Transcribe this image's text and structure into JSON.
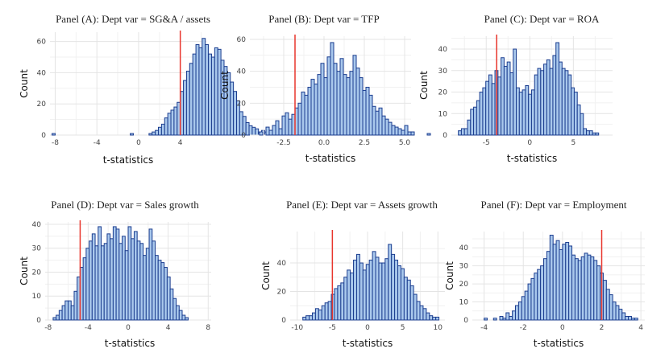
{
  "chart_data": [
    {
      "type": "bar",
      "title": "Panel (A): Dept var = SG&A / assets",
      "xlabel": "t-statistics",
      "ylabel": "Count",
      "xlim": [
        -8.5,
        6.5
      ],
      "ylim": [
        0,
        66
      ],
      "xticks": [
        -8,
        -4,
        0,
        4
      ],
      "yticks": [
        0,
        20,
        40,
        60
      ],
      "bin_width": 0.3,
      "bin_start": -8.3,
      "counts": [
        1,
        0,
        0,
        0,
        0,
        0,
        0,
        0,
        0,
        0,
        0,
        0,
        0,
        0,
        0,
        0,
        0,
        0,
        0,
        0,
        0,
        0,
        0,
        0,
        0,
        1,
        0,
        0,
        0,
        0,
        0,
        1,
        2,
        3,
        5,
        7,
        11,
        14,
        16,
        18,
        21,
        28,
        35,
        41,
        46,
        52,
        58,
        56,
        62,
        58,
        52,
        50,
        56,
        55,
        48,
        44,
        40,
        34,
        28,
        22,
        15,
        12,
        8,
        6,
        5,
        4,
        2,
        3,
        2,
        1,
        1,
        2
      ],
      "vline": 4.0,
      "colors": {
        "bar_fill": "#a9c8ec",
        "bar_edge": "#1b3d8f",
        "vline": "#e8352c",
        "grid": "#e4e4e4"
      }
    },
    {
      "type": "bar",
      "title": "Panel (B): Dept var = TFP",
      "xlabel": "t-statistics",
      "ylabel": "Count",
      "xlim": [
        -4.6,
        5.4
      ],
      "ylim": [
        0,
        62
      ],
      "xticks": [
        -2.5,
        0.0,
        2.5,
        5.0
      ],
      "xtick_labels": [
        "-2.5",
        "0.0",
        "2.5",
        "5.0"
      ],
      "yticks": [
        0,
        20,
        40,
        60
      ],
      "bin_width": 0.2,
      "bin_start": -4.0,
      "counts": [
        2,
        0,
        5,
        3,
        6,
        9,
        4,
        12,
        14,
        10,
        13,
        17,
        20,
        27,
        25,
        30,
        35,
        32,
        38,
        45,
        36,
        49,
        58,
        45,
        40,
        48,
        38,
        36,
        40,
        50,
        42,
        36,
        28,
        30,
        25,
        18,
        15,
        17,
        12,
        10,
        8,
        6,
        5,
        4,
        3,
        6,
        2,
        2,
        0,
        0,
        0,
        0,
        1
      ],
      "vline": -1.8,
      "colors": {
        "bar_fill": "#a9c8ec",
        "bar_edge": "#1b3d8f",
        "vline": "#e8352c",
        "grid": "#e4e4e4"
      }
    },
    {
      "type": "bar",
      "title": "Panel (C): Dept var = ROA",
      "xlabel": "t-statistics",
      "ylabel": "Count",
      "xlim": [
        -9,
        9.5
      ],
      "ylim": [
        0,
        46
      ],
      "xticks": [
        -5,
        0,
        5
      ],
      "yticks": [
        0,
        10,
        20,
        30,
        40
      ],
      "bin_width": 0.35,
      "bin_start": -8.2,
      "counts": [
        2,
        3,
        3,
        7,
        12,
        13,
        16,
        20,
        22,
        25,
        28,
        24,
        30,
        27,
        36,
        32,
        34,
        29,
        40,
        22,
        20,
        21,
        23,
        19,
        21,
        28,
        31,
        30,
        33,
        35,
        31,
        37,
        43,
        34,
        31,
        30,
        28,
        22,
        20,
        14,
        10,
        3,
        2,
        2,
        1,
        1
      ],
      "vline": -3.8,
      "colors": {
        "bar_fill": "#a9c8ec",
        "bar_edge": "#1b3d8f",
        "vline": "#e8352c",
        "grid": "#e4e4e4"
      }
    },
    {
      "type": "bar",
      "title": "Panel (D): Dept var = Sales growth",
      "xlabel": "t-statistics",
      "ylabel": "Count",
      "xlim": [
        -8.3,
        8.3
      ],
      "ylim": [
        0,
        41
      ],
      "xticks": [
        -8,
        -4,
        0,
        4,
        8
      ],
      "yticks": [
        0,
        10,
        20,
        30,
        40
      ],
      "bin_width": 0.3,
      "bin_start": -7.5,
      "counts": [
        1,
        2,
        4,
        6,
        8,
        8,
        6,
        12,
        18,
        22,
        26,
        30,
        33,
        36,
        31,
        39,
        31,
        32,
        36,
        34,
        39,
        38,
        32,
        35,
        29,
        39,
        34,
        37,
        33,
        32,
        27,
        30,
        38,
        33,
        27,
        25,
        24,
        22,
        18,
        13,
        9,
        6,
        4,
        2,
        1
      ],
      "vline": -4.8,
      "colors": {
        "bar_fill": "#a9c8ec",
        "bar_edge": "#1b3d8f",
        "vline": "#e8352c",
        "grid": "#e4e4e4"
      }
    },
    {
      "type": "bar",
      "title": "Panel (E): Dept var = Assets growth",
      "xlabel": "t-statistics",
      "ylabel": "Count",
      "xlim": [
        -11,
        11
      ],
      "ylim": [
        0,
        62
      ],
      "xticks": [
        -10,
        -5,
        0,
        5,
        10
      ],
      "yticks": [
        0,
        20,
        40
      ],
      "bin_width": 0.45,
      "bin_start": -9.2,
      "counts": [
        2,
        3,
        3,
        5,
        8,
        7,
        10,
        12,
        13,
        18,
        22,
        24,
        26,
        30,
        35,
        33,
        42,
        46,
        40,
        35,
        39,
        42,
        48,
        44,
        40,
        40,
        43,
        53,
        46,
        42,
        38,
        36,
        30,
        28,
        24,
        18,
        13,
        10,
        8,
        5,
        3,
        2,
        2
      ],
      "vline": -5.0,
      "colors": {
        "bar_fill": "#a9c8ec",
        "bar_edge": "#1b3d8f",
        "vline": "#e8352c",
        "grid": "#e4e4e4"
      }
    },
    {
      "type": "bar",
      "title": "Panel (F): Dept var = Employment",
      "xlabel": "t-statistics",
      "ylabel": "Count",
      "xlim": [
        -4.6,
        4.2
      ],
      "ylim": [
        0,
        49
      ],
      "xticks": [
        -4,
        -2,
        0,
        2,
        4
      ],
      "yticks": [
        0,
        10,
        20,
        30,
        40
      ],
      "bin_width": 0.16,
      "bin_start": -4.0,
      "counts": [
        1,
        0,
        0,
        1,
        0,
        2,
        1,
        4,
        2,
        5,
        8,
        10,
        13,
        16,
        20,
        23,
        26,
        28,
        30,
        34,
        38,
        47,
        42,
        44,
        39,
        42,
        43,
        41,
        36,
        34,
        33,
        35,
        37,
        36,
        35,
        33,
        30,
        26,
        22,
        17,
        14,
        10,
        8,
        6,
        4,
        2,
        2,
        1,
        1
      ],
      "vline": 2.0,
      "colors": {
        "bar_fill": "#a9c8ec",
        "bar_edge": "#1b3d8f",
        "vline": "#e8352c",
        "grid": "#e4e4e4"
      }
    }
  ]
}
